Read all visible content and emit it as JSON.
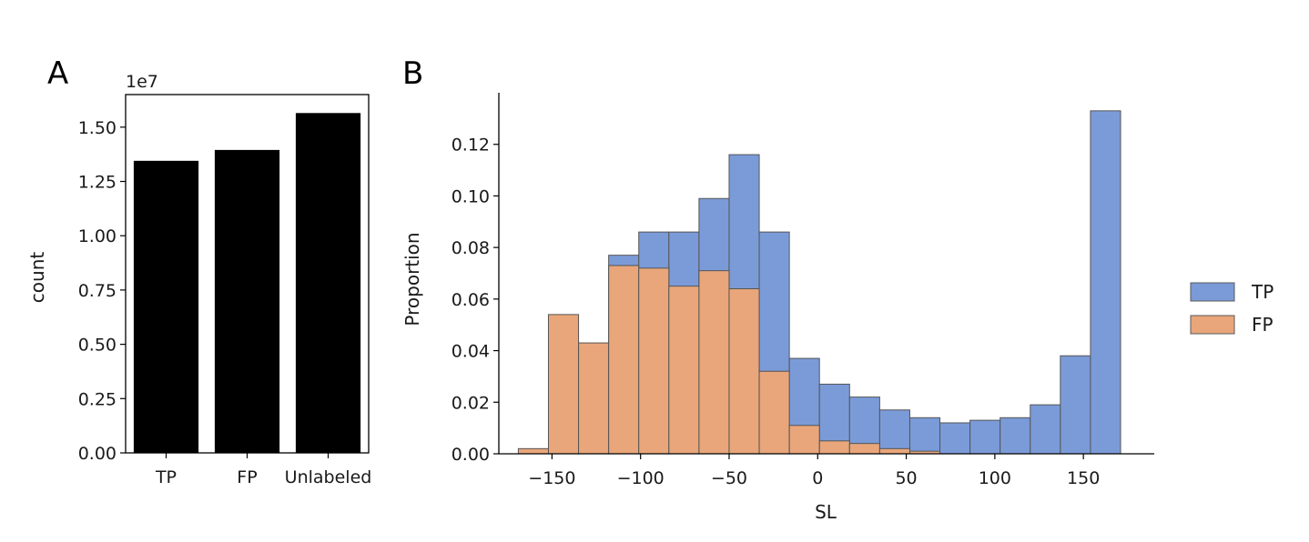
{
  "panels": {
    "a_letter": "A",
    "b_letter": "B"
  },
  "chart_data": [
    {
      "type": "bar",
      "panel": "A",
      "categories": [
        "TP",
        "FP",
        "Unlabeled"
      ],
      "values": [
        1.345,
        1.395,
        1.565
      ],
      "offset_text": "1e7",
      "ylabel": "count",
      "xlabel": "",
      "ylim": [
        0,
        1.65
      ],
      "yticks": [
        "0.00",
        "0.25",
        "0.50",
        "0.75",
        "1.00",
        "1.25",
        "1.50"
      ],
      "bar_color": "#000000",
      "grid": false
    },
    {
      "type": "bar",
      "subtype": "histogram-overlay",
      "panel": "B",
      "xlabel": "SL",
      "ylabel": "Proportion",
      "xlim": [
        -180,
        190
      ],
      "ylim": [
        0,
        0.14
      ],
      "xticks": [
        "−150",
        "−100",
        "−50",
        "0",
        "50",
        "100",
        "150"
      ],
      "yticks": [
        "0.00",
        "0.02",
        "0.04",
        "0.06",
        "0.08",
        "0.10",
        "0.12"
      ],
      "bin_edges": [
        -169,
        -152,
        -135,
        -118,
        -101,
        -84,
        -67,
        -50,
        -33,
        -16,
        1,
        18,
        35,
        52,
        69,
        86,
        103,
        120,
        137,
        154,
        171
      ],
      "series": [
        {
          "name": "TP",
          "color": "#7b9bd8",
          "values": [
            0.0,
            0.0,
            0.0,
            0.077,
            0.086,
            0.086,
            0.099,
            0.116,
            0.086,
            0.037,
            0.027,
            0.022,
            0.017,
            0.014,
            0.012,
            0.013,
            0.014,
            0.019,
            0.038,
            0.133
          ]
        },
        {
          "name": "FP",
          "color": "#e8a67a",
          "values": [
            0.002,
            0.054,
            0.043,
            0.073,
            0.072,
            0.065,
            0.071,
            0.064,
            0.032,
            0.011,
            0.005,
            0.004,
            0.002,
            0.001,
            0.0,
            0.0,
            0.0,
            0.0,
            0.0,
            0.0
          ]
        }
      ],
      "legend": {
        "placement": "right",
        "entries": [
          "TP",
          "FP"
        ]
      },
      "grid": false
    }
  ]
}
